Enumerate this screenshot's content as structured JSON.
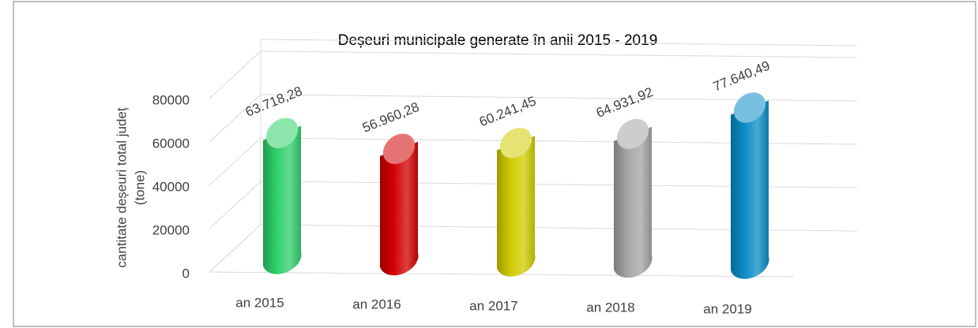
{
  "chart_data": {
    "type": "bar",
    "title": "Deșeuri municipale generate în anii 2015 - 2019",
    "ylabel": [
      "cantitate  deșeuri total județ",
      "(tone)"
    ],
    "categories": [
      "an 2015",
      "an 2016",
      "an 2017",
      "an 2018",
      "an 2019"
    ],
    "values": [
      63718.28,
      56960.28,
      60241.45,
      64931.92,
      77640.49
    ],
    "value_labels": [
      "63.718,28",
      "56.960,28",
      "60.241,45",
      "64.931,92",
      "77.640,49"
    ],
    "colors": [
      "#2fcf6a",
      "#d10000",
      "#cfcc00",
      "#a4a4a4",
      "#0a8cc4"
    ],
    "ylim": [
      0,
      100000
    ],
    "yticks": [
      0,
      20000,
      40000,
      60000,
      80000
    ],
    "grid": true
  }
}
